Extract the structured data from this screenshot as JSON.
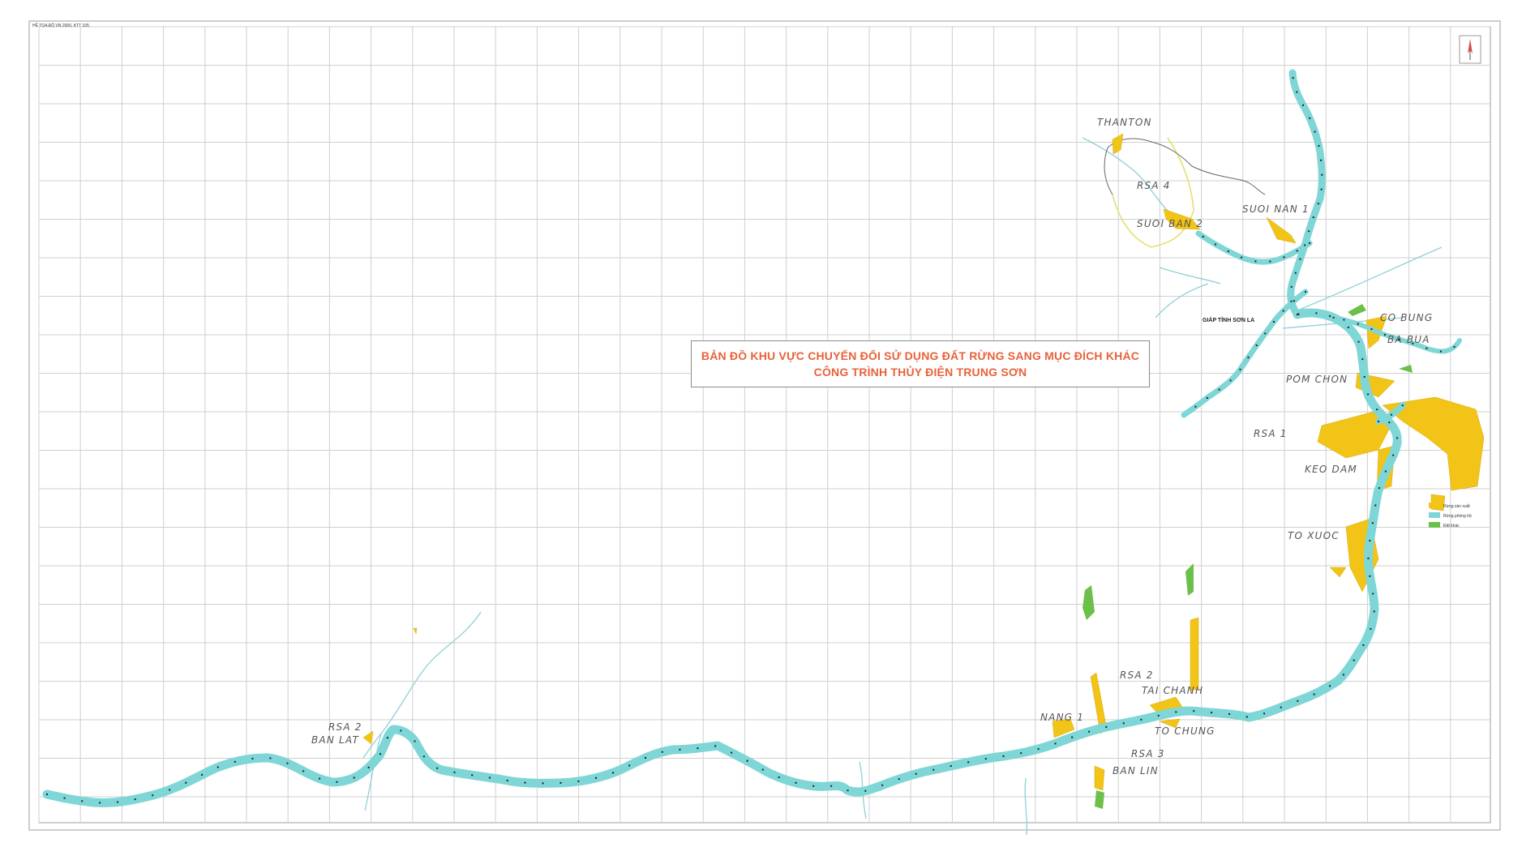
{
  "map": {
    "title_line1": "BẢN ĐỒ KHU VỰC CHUYỂN ĐỔI SỬ DỤNG ĐẤT RỪNG SANG MỤC ĐÍCH KHÁC",
    "title_line2": "CÔNG TRÌNH THỦY ĐIỆN TRUNG SƠN",
    "projection_note": "HỆ TỌA ĐỘ VN 2000, KTT 105",
    "province_boundary_label": "GIÁP TỈNH SƠN LA",
    "colors": {
      "river": "#7fd6d6",
      "reservoir_land": "#f2c417",
      "forest_area": "#6cc04a",
      "grid": "#c9c9c9",
      "title_text": "#e8623a",
      "boundary": "#e8e27a"
    },
    "annotations": {
      "thanton": "THANTON",
      "rsa4": "RSA 4",
      "suoi_ban2": "SUOI BAN 2",
      "suoi_nan1": "SUOI NAN 1",
      "co_bung": "CO BUNG",
      "ba_bua": "BA BUA",
      "pom_chon": "POM CHON",
      "rsa1": "RSA 1",
      "keo_dam": "KEO DAM",
      "to_xuoc": "TO XUOC",
      "rsa2_ban_lat": "RSA 2",
      "ban_lat": "BAN LAT",
      "rsa2_east": "RSA 2",
      "tai_chanh": "TAI CHANH",
      "nang1": "NANG 1",
      "to_chung": "TO CHUNG",
      "rsa3": "RSA 3",
      "ban_lin": "BAN LIN"
    },
    "legend": [
      "Rừng sản xuất",
      "Rừng phòng hộ",
      "Đất khác"
    ],
    "icons": [
      "north-arrow-icon"
    ]
  }
}
